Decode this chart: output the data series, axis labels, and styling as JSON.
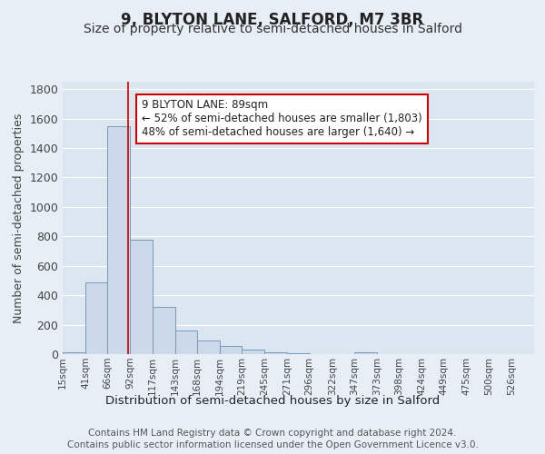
{
  "title1": "9, BLYTON LANE, SALFORD, M7 3BR",
  "title2": "Size of property relative to semi-detached houses in Salford",
  "xlabel": "Distribution of semi-detached houses by size in Salford",
  "ylabel": "Number of semi-detached properties",
  "footer1": "Contains HM Land Registry data © Crown copyright and database right 2024.",
  "footer2": "Contains public sector information licensed under the Open Government Licence v3.0.",
  "annotation_title": "9 BLYTON LANE: 89sqm",
  "annotation_line1": "← 52% of semi-detached houses are smaller (1,803)",
  "annotation_line2": "48% of semi-detached houses are larger (1,640) →",
  "bar_edges": [
    15,
    41,
    66,
    92,
    117,
    143,
    168,
    194,
    219,
    245,
    271,
    296,
    322,
    347,
    373,
    398,
    424,
    449,
    475,
    500,
    526
  ],
  "bar_heights": [
    15,
    490,
    1550,
    775,
    320,
    160,
    95,
    55,
    30,
    15,
    5,
    2,
    1,
    15,
    1,
    1,
    0,
    0,
    0,
    0
  ],
  "bar_color": "#ccd9e8",
  "bar_edge_color": "#7799bb",
  "bar_linewidth": 0.7,
  "red_line_x": 89,
  "red_line_color": "#cc0000",
  "background_color": "#e8eef6",
  "plot_bg_color": "#dce6f0",
  "ylim": [
    0,
    1850
  ],
  "yticks": [
    0,
    200,
    400,
    600,
    800,
    1000,
    1200,
    1400,
    1600,
    1800
  ],
  "annotation_box_color": "white",
  "annotation_box_edge": "#cc0000",
  "grid_color": "white",
  "title1_fontsize": 12,
  "title2_fontsize": 10,
  "xlabel_fontsize": 9.5,
  "ylabel_fontsize": 9,
  "tick_fontsize": 7.5,
  "footer_fontsize": 7.5,
  "ann_fontsize": 8.5
}
